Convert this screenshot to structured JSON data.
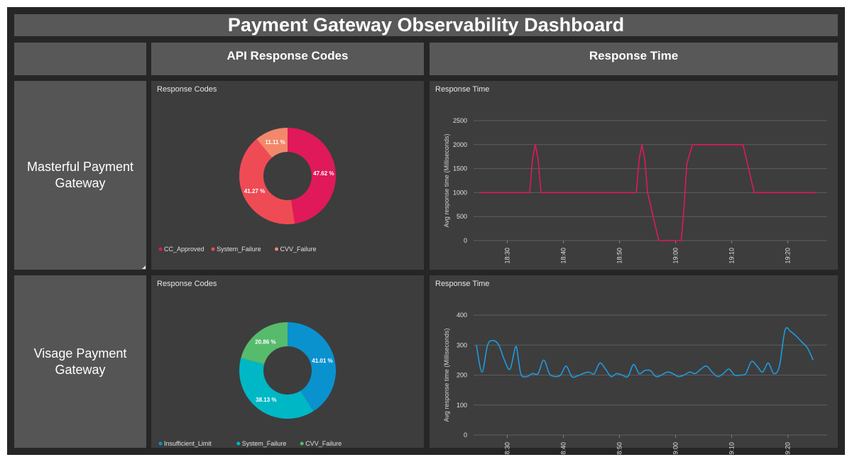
{
  "dashboard": {
    "title": "Payment Gateway Observability Dashboard"
  },
  "columns": {
    "codes": "API Response Codes",
    "time": "Response Time"
  },
  "rows": [
    {
      "label": "Masterful Payment Gateway"
    },
    {
      "label": "Visage Payment Gateway"
    }
  ],
  "chart_data": [
    {
      "id": "mp-codes",
      "type": "pie",
      "donut": true,
      "title": "Response Codes",
      "labels": [
        "CC_Approved",
        "System_Failure",
        "CVV_Failure"
      ],
      "values": [
        47.62,
        41.27,
        11.11
      ],
      "value_labels": [
        "47.62 %",
        "41.27 %",
        "11.11 %"
      ],
      "colors": [
        "#e0195a",
        "#ef4b55",
        "#f4876a"
      ],
      "legend": "bottom-left"
    },
    {
      "id": "mp-time",
      "type": "line",
      "title": "Response Time",
      "xlabel": "",
      "ylabel": "Avg response time (Milliseconds)",
      "ylim": [
        0,
        2500
      ],
      "yticks": [
        0,
        500,
        1000,
        1500,
        2000,
        2500
      ],
      "xlim": [
        1104,
        1167
      ],
      "xticks": [
        {
          "t": 1110,
          "label": "18:30"
        },
        {
          "t": 1120,
          "label": "18:40"
        },
        {
          "t": 1130,
          "label": "18:50"
        },
        {
          "t": 1140,
          "label": "19:00"
        },
        {
          "t": 1150,
          "label": "19:10"
        },
        {
          "t": 1160,
          "label": "19:20"
        }
      ],
      "grid": true,
      "color": "#e0195a",
      "smooth": false,
      "series": [
        {
          "x": [
            1105,
            1114,
            1114.5,
            1115,
            1115.5,
            1116,
            1133,
            1133.5,
            1134,
            1134.5,
            1135,
            1136,
            1137,
            1138,
            1141,
            1141.5,
            1142,
            1143,
            1152,
            1153,
            1154,
            1165
          ],
          "y": [
            1000,
            1000,
            1700,
            2000,
            1700,
            1000,
            1000,
            1700,
            2000,
            1700,
            1000,
            500,
            0,
            0,
            0,
            700,
            1600,
            2000,
            2000,
            1500,
            1000,
            1000
          ]
        }
      ]
    },
    {
      "id": "vp-codes",
      "type": "pie",
      "donut": true,
      "title": "Response Codes",
      "labels": [
        "Insufficient_Limit",
        "System_Failure",
        "CVV_Failure"
      ],
      "values": [
        41.01,
        38.13,
        20.86
      ],
      "value_labels": [
        "41.01 %",
        "38.13 %",
        "20.86 %"
      ],
      "colors": [
        "#0a92cf",
        "#00b7c6",
        "#57bb6c"
      ],
      "legend": "bottom-left"
    },
    {
      "id": "vp-time",
      "type": "line",
      "title": "Response Time",
      "xlabel": "",
      "ylabel": "Avg response time (Milliseconds)",
      "ylim": [
        0,
        400
      ],
      "yticks": [
        0,
        100,
        200,
        300,
        400
      ],
      "xlim": [
        1104,
        1167
      ],
      "xticks": [
        {
          "t": 1110,
          "label": "8:30"
        },
        {
          "t": 1120,
          "label": "8:40"
        },
        {
          "t": 1130,
          "label": "8:50"
        },
        {
          "t": 1140,
          "label": "9:00"
        },
        {
          "t": 1150,
          "label": "9:10"
        },
        {
          "t": 1160,
          "label": "9:20"
        }
      ],
      "grid": true,
      "color": "#1e9be0",
      "smooth": true,
      "series": [
        {
          "x": [
            1104.5,
            1105.5,
            1106.5,
            1107.5,
            1108.5,
            1109.5,
            1110.5,
            1111.5,
            1112,
            1112.5,
            1113.5,
            1114.5,
            1115.5,
            1116.5,
            1117.5,
            1118.5,
            1119.5,
            1120.5,
            1121.5,
            1122.5,
            1123.5,
            1124.5,
            1125.5,
            1126.5,
            1127.5,
            1128.5,
            1129.5,
            1130.5,
            1131.5,
            1132.5,
            1133.5,
            1134.5,
            1135.5,
            1136.5,
            1137.5,
            1138.5,
            1139.5,
            1140.5,
            1141.5,
            1142.5,
            1143.5,
            1144.5,
            1145.5,
            1146.5,
            1147.5,
            1148.5,
            1149.5,
            1150.5,
            1151.5,
            1152.5,
            1153.5,
            1154.5,
            1155.5,
            1156.5,
            1157.5,
            1158.5,
            1159.5,
            1160.5,
            1161.5,
            1162.5,
            1163.5,
            1164.5
          ],
          "y": [
            300,
            210,
            300,
            315,
            300,
            250,
            220,
            295,
            250,
            200,
            195,
            205,
            205,
            250,
            205,
            195,
            200,
            230,
            195,
            197,
            205,
            210,
            205,
            240,
            220,
            195,
            205,
            200,
            195,
            235,
            205,
            215,
            215,
            195,
            200,
            210,
            205,
            195,
            200,
            210,
            205,
            220,
            230,
            210,
            195,
            205,
            220,
            200,
            200,
            205,
            245,
            230,
            210,
            240,
            205,
            230,
            350,
            345,
            330,
            310,
            290,
            250
          ]
        }
      ]
    }
  ]
}
